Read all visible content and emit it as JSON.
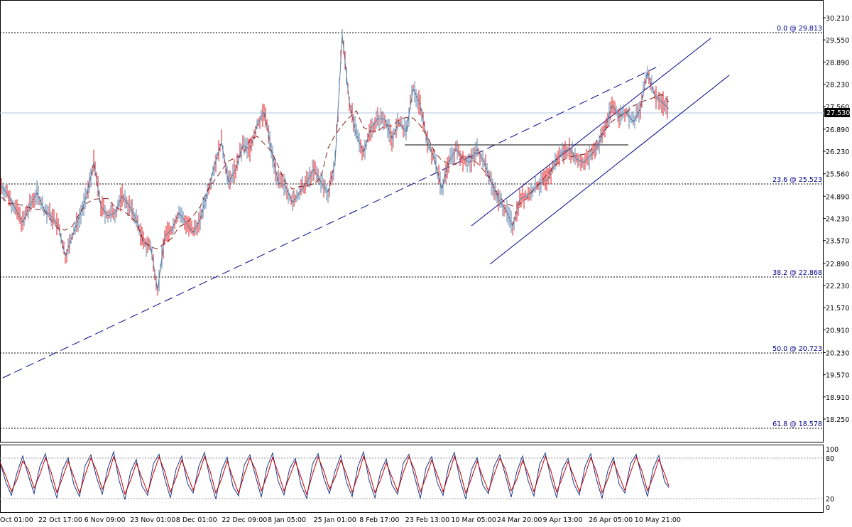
{
  "chart_data": {
    "type": "line",
    "title": "",
    "current_price": "27.530",
    "price_axis": {
      "ylim": [
        18.25,
        30.21
      ],
      "ticks": [
        "30.210",
        "29.550",
        "28.890",
        "28.230",
        "27.560",
        "26.890",
        "26.230",
        "25.560",
        "24.890",
        "24.230",
        "23.570",
        "22.890",
        "22.230",
        "21.570",
        "20.910",
        "20.230",
        "19.570",
        "18.910",
        "18.250"
      ]
    },
    "time_axis": {
      "labels": [
        "Oct 01:00",
        "22 Oct 17:00",
        "6 Nov 09:00",
        "23 Nov 01:00",
        "8 Dec 01:00",
        "22 Dec 09:00",
        "8 Jan 05:00",
        "25 Jan 01:00",
        "8 Feb 17:00",
        "23 Feb 13:00",
        "10 Mar 05:00",
        "24 Mar 20:00",
        "9 Apr 13:00",
        "26 Apr 05:00",
        "10 May 21:00"
      ]
    },
    "fibonacci_levels": [
      {
        "label": "0.0 @ 29.813",
        "price": 29.813
      },
      {
        "label": "23.6 @ 25.523",
        "price": 25.523
      },
      {
        "label": "38.2 @ 22.868",
        "price": 22.868
      },
      {
        "label": "50.0 @ 20.723",
        "price": 20.723
      },
      {
        "label": "61.8 @ 18.578",
        "price": 18.578
      }
    ],
    "price_series": {
      "name": "",
      "x": [
        0,
        10,
        20,
        30,
        40,
        50,
        60,
        70,
        80,
        90,
        100,
        110,
        120,
        130,
        140,
        150,
        160,
        170,
        180,
        190,
        200,
        210,
        220,
        230,
        240,
        250,
        260,
        270,
        280,
        290,
        300,
        310,
        320,
        330,
        340,
        350,
        360,
        370,
        380,
        390,
        400,
        410,
        420,
        430,
        440,
        450,
        460,
        470,
        480,
        490,
        500,
        510,
        520,
        530,
        540,
        550,
        560,
        570,
        580,
        590,
        600,
        610,
        620,
        630,
        640,
        650,
        660,
        670,
        680,
        690,
        700,
        710,
        720,
        730,
        740,
        750,
        760,
        770,
        780,
        790,
        800,
        810,
        820,
        830,
        840,
        850,
        860,
        870,
        880,
        890,
        900,
        910,
        920,
        930,
        940
      ],
      "values": [
        25.2,
        24.9,
        24.5,
        24.1,
        24.6,
        25.0,
        24.5,
        24.3,
        24.0,
        23.1,
        23.7,
        24.3,
        24.9,
        25.9,
        24.6,
        24.3,
        24.4,
        24.9,
        24.6,
        24.2,
        23.5,
        23.4,
        22.1,
        23.7,
        23.9,
        24.4,
        24.1,
        23.8,
        24.2,
        25.0,
        25.8,
        26.5,
        25.3,
        25.7,
        26.4,
        26.3,
        27.0,
        27.4,
        26.3,
        25.3,
        25.2,
        24.7,
        25.0,
        25.3,
        25.7,
        25.3,
        25.0,
        25.9,
        29.7,
        27.7,
        26.7,
        26.2,
        26.9,
        27.2,
        27.2,
        26.6,
        27.1,
        26.8,
        28.1,
        27.6,
        26.5,
        26.0,
        25.1,
        25.9,
        26.3,
        26.0,
        25.9,
        26.3,
        25.9,
        25.3,
        24.8,
        24.5,
        24.0,
        24.8,
        24.9,
        25.1,
        25.3,
        25.4,
        25.9,
        26.2,
        26.3,
        26.0,
        25.9,
        26.1,
        26.4,
        26.9,
        27.6,
        27.3,
        27.4,
        27.1,
        27.5,
        28.6,
        27.9,
        27.7,
        27.5
      ]
    },
    "oscillator": {
      "name": "",
      "ylim": [
        0,
        100
      ],
      "ticks": [
        "100",
        "80",
        "20",
        "0"
      ],
      "levels": [
        80,
        20
      ],
      "x": [
        0,
        8,
        16,
        24,
        32,
        40,
        48,
        56,
        64,
        72,
        80,
        88,
        96,
        104,
        112,
        120,
        128,
        136,
        144,
        152,
        160,
        168,
        176,
        184,
        192,
        200,
        208,
        216,
        224,
        232,
        240,
        248,
        256,
        264,
        272,
        280,
        288,
        296,
        304,
        312,
        320,
        328,
        336,
        344,
        352,
        360,
        368,
        376,
        384,
        392,
        400,
        408,
        416,
        424,
        432,
        440,
        448,
        456,
        464,
        472,
        480,
        488,
        496,
        504,
        512,
        520,
        528,
        536,
        544,
        552,
        560,
        568,
        576,
        584,
        592,
        600,
        608,
        616,
        624,
        632,
        640,
        648,
        656,
        664,
        672,
        680,
        688,
        696,
        704,
        712,
        720,
        728,
        736,
        744,
        752,
        760,
        768,
        776,
        784,
        792,
        800,
        808,
        816,
        824,
        832,
        840,
        848,
        856,
        864,
        872,
        880,
        888,
        896,
        904,
        912,
        920,
        928,
        936,
        942
      ],
      "values": [
        78,
        45,
        22,
        60,
        88,
        55,
        25,
        70,
        92,
        48,
        18,
        65,
        85,
        40,
        20,
        72,
        90,
        52,
        24,
        68,
        95,
        46,
        15,
        62,
        82,
        38,
        22,
        75,
        91,
        50,
        18,
        66,
        88,
        42,
        26,
        71,
        94,
        49,
        16,
        64,
        86,
        37,
        21,
        73,
        90,
        54,
        19,
        69,
        93,
        45,
        23,
        67,
        84,
        39,
        17,
        74,
        92,
        51,
        25,
        63,
        89,
        44,
        20,
        70,
        95,
        47,
        18,
        61,
        83,
        40,
        24,
        76,
        91,
        53,
        17,
        68,
        87,
        43,
        22,
        72,
        94,
        48,
        16,
        65,
        85,
        39,
        25,
        71,
        90,
        55,
        19,
        62,
        88,
        46,
        21,
        74,
        93,
        50,
        18,
        66,
        84,
        42,
        23,
        70,
        92,
        49,
        17,
        63,
        86,
        41,
        26,
        75,
        91,
        52,
        20,
        67,
        89,
        45,
        35
      ]
    }
  }
}
